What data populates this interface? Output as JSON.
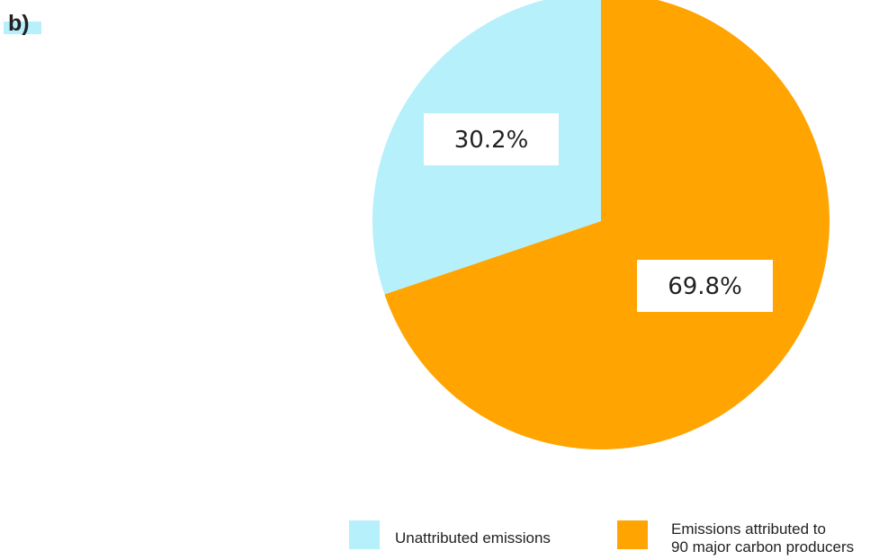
{
  "panel_label": "b)",
  "colors": {
    "unattributed": "#b5f0fb",
    "attributed": "#ffa400",
    "label_box": "#ffffff",
    "text": "#222222"
  },
  "chart_data": {
    "type": "pie",
    "title": "",
    "start_angle_deg": 0,
    "direction": "clockwise",
    "slices": [
      {
        "key": "attributed",
        "label_lines": [
          "Emissions attributed to",
          "90 major carbon producers"
        ],
        "value": 69.8,
        "value_label": "69.8%",
        "color": "#ffa400"
      },
      {
        "key": "unattributed",
        "label_lines": [
          "Unattributed emissions"
        ],
        "value": 30.2,
        "value_label": "30.2%",
        "color": "#b5f0fb"
      }
    ],
    "legend": {
      "placement": "bottom",
      "order": [
        "unattributed",
        "attributed"
      ]
    }
  }
}
